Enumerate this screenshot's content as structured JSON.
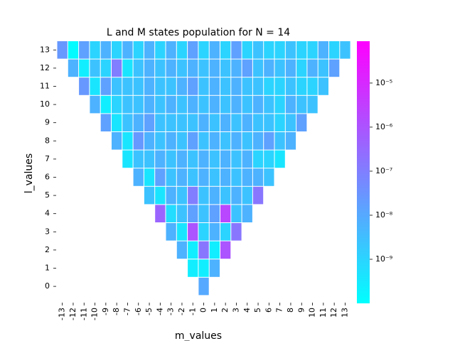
{
  "chart_data": {
    "type": "heatmap",
    "title": "L and M states population for N = 14",
    "xlabel": "m_values",
    "ylabel": "l_values",
    "x_ticks": [
      "-13",
      "-12",
      "-11",
      "-10",
      "-9",
      "-8",
      "-7",
      "-6",
      "-5",
      "-4",
      "-3",
      "-2",
      "-1",
      "0",
      "1",
      "2",
      "3",
      "4",
      "5",
      "6",
      "7",
      "8",
      "9",
      "10",
      "11",
      "12",
      "13"
    ],
    "y_ticks": [
      "13",
      "12",
      "11",
      "10",
      "9",
      "8",
      "7",
      "6",
      "5",
      "4",
      "3",
      "2",
      "1",
      "0"
    ],
    "l_values": [
      13,
      12,
      11,
      10,
      9,
      8,
      7,
      6,
      5,
      4,
      3,
      2,
      1,
      0
    ],
    "m_values": [
      -13,
      -12,
      -11,
      -10,
      -9,
      -8,
      -7,
      -6,
      -5,
      -4,
      -3,
      -2,
      -1,
      0,
      1,
      2,
      3,
      4,
      5,
      6,
      7,
      8,
      9,
      10,
      11,
      12,
      13
    ],
    "log10_values": [
      [
        -7.6,
        -9.9,
        -7.8,
        -9.0,
        -8.2,
        -9.0,
        -8.2,
        -9.0,
        -8.2,
        -9.0,
        -8.2,
        -9.0,
        -7.8,
        -9.0,
        -8.2,
        -9.0,
        -7.8,
        -9.0,
        -8.6,
        -9.0,
        -9.0,
        -8.6,
        -9.0,
        -9.0,
        -8.2,
        -9.0,
        -8.6
      ],
      [
        -8.2,
        -9.6,
        -8.6,
        -9.0,
        -7.0,
        -9.4,
        -8.6,
        -8.2,
        -8.6,
        -8.2,
        -8.6,
        -8.2,
        -8.6,
        -8.2,
        -8.6,
        -8.2,
        -7.8,
        -8.6,
        -8.2,
        -8.6,
        -8.2,
        -9.0,
        -8.2,
        -8.6,
        -7.8
      ],
      [
        -7.6,
        -9.4,
        -7.8,
        -8.6,
        -8.6,
        -8.6,
        -8.2,
        -8.6,
        -8.6,
        -8.2,
        -7.8,
        -8.6,
        -8.2,
        -8.6,
        -8.2,
        -8.6,
        -8.6,
        -9.0,
        -9.0,
        -8.6,
        -9.0,
        -9.0,
        -8.6
      ],
      [
        -8.2,
        -9.6,
        -9.0,
        -8.6,
        -8.6,
        -8.2,
        -8.6,
        -8.2,
        -8.6,
        -8.2,
        -8.6,
        -8.2,
        -8.6,
        -8.2,
        -8.6,
        -8.2,
        -8.6,
        -9.0,
        -8.2,
        -8.6,
        -8.6
      ],
      [
        -7.8,
        -9.4,
        -8.6,
        -8.2,
        -7.8,
        -8.6,
        -8.6,
        -8.6,
        -8.6,
        -8.2,
        -8.6,
        -8.2,
        -8.6,
        -8.2,
        -8.6,
        -8.6,
        -9.0,
        -8.6,
        -7.8
      ],
      [
        -8.2,
        -9.4,
        -7.6,
        -8.2,
        -8.6,
        -8.2,
        -8.6,
        -7.8,
        -8.6,
        -8.2,
        -8.6,
        -8.2,
        -8.6,
        -8.2,
        -7.8,
        -8.6,
        -8.2
      ],
      [
        -9.4,
        -8.6,
        -8.6,
        -8.2,
        -8.6,
        -8.2,
        -8.6,
        -8.2,
        -8.6,
        -8.2,
        -8.6,
        -8.2,
        -9.0,
        -9.0,
        -9.4
      ],
      [
        -8.2,
        -9.4,
        -7.8,
        -8.6,
        -8.2,
        -8.6,
        -8.2,
        -8.6,
        -8.2,
        -8.6,
        -8.2,
        -8.2,
        -8.6
      ],
      [
        -8.6,
        -9.4,
        -8.2,
        -8.6,
        -7.0,
        -8.6,
        -8.2,
        -8.6,
        -8.2,
        -8.6,
        -6.8
      ],
      [
        -6.4,
        -9.2,
        -8.6,
        -7.8,
        -8.6,
        -7.8,
        -5.7,
        -8.6,
        -8.2
      ],
      [
        -8.2,
        -9.4,
        -6.0,
        -9.0,
        -8.2,
        -9.0,
        -6.8
      ],
      [
        -8.2,
        -9.6,
        -6.8,
        -9.6,
        -6.0
      ],
      [
        -9.6,
        -9.6,
        -8.2
      ],
      [
        -8.0
      ]
    ],
    "colorbar": {
      "scale": "log",
      "tick_labels": [
        "10⁻⁵",
        "10⁻⁶",
        "10⁻⁷",
        "10⁻⁸",
        "10⁻⁹"
      ],
      "tick_exponents": [
        -5,
        -6,
        -7,
        -8,
        -9
      ],
      "vmin_exponent": -10.0,
      "vmax_exponent": -4.05,
      "colormap": "cool",
      "color_low": "#00ffff",
      "color_high": "#ff00ff"
    },
    "grid": false,
    "cell_gap_color": "#ffffff"
  }
}
